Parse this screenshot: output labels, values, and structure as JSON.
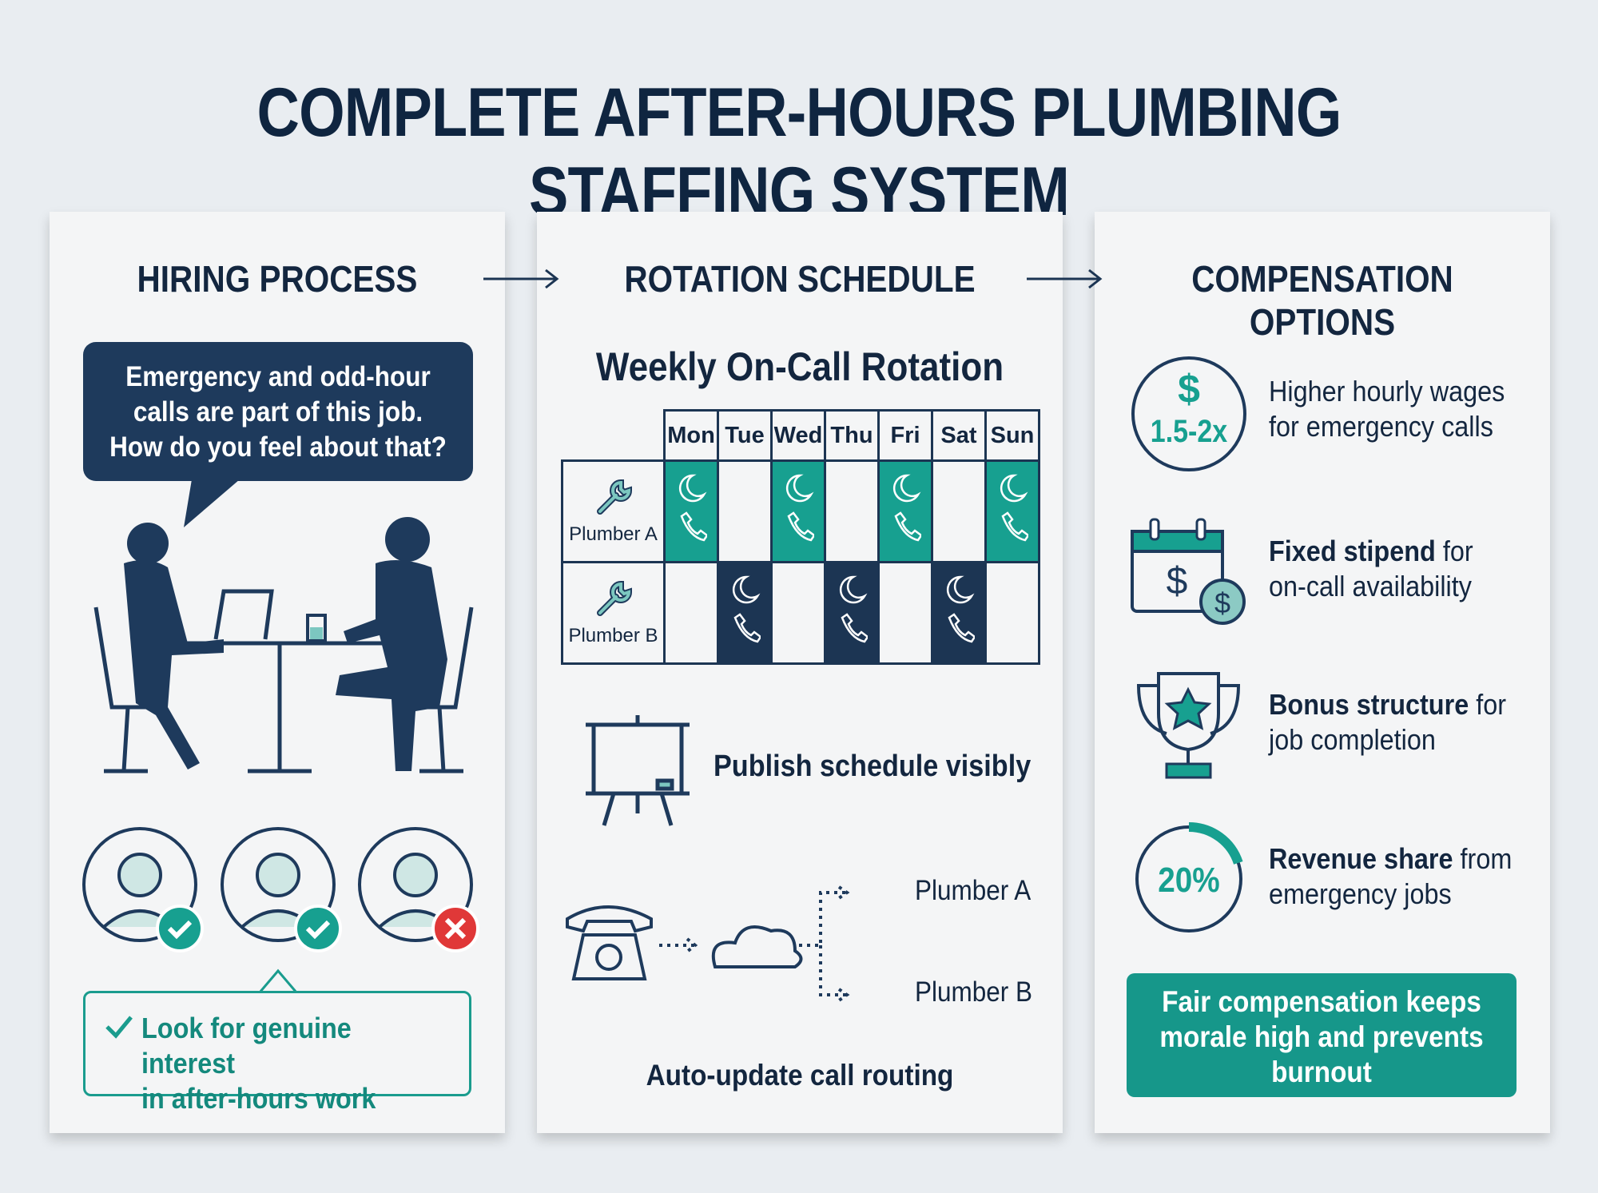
{
  "title": "COMPLETE AFTER-HOURS PLUMBING STAFFING SYSTEM",
  "colors": {
    "navy": "#1e3a5c",
    "teal": "#17a090",
    "red": "#e03838",
    "background": "#e9edf1"
  },
  "hiring": {
    "heading": "HIRING PROCESS",
    "question_lines": [
      "Emergency and odd-hour",
      "calls are part of this job.",
      "How do you feel about that?"
    ],
    "candidates": [
      {
        "status": "accepted",
        "icon": "check-icon"
      },
      {
        "status": "accepted",
        "icon": "check-icon"
      },
      {
        "status": "rejected",
        "icon": "x-icon"
      }
    ],
    "tip_lines": [
      "Look for genuine interest",
      "in after-hours work"
    ]
  },
  "rotation": {
    "heading": "ROTATION SCHEDULE",
    "subtitle": "Weekly On-Call Rotation",
    "days": [
      "Mon",
      "Tue",
      "Wed",
      "Thu",
      "Fri",
      "Sat",
      "Sun"
    ],
    "plumbers": [
      {
        "name": "Plumber A",
        "on_call": [
          true,
          false,
          true,
          false,
          true,
          false,
          true
        ]
      },
      {
        "name": "Plumber B",
        "on_call": [
          false,
          true,
          false,
          true,
          false,
          true,
          false
        ]
      }
    ],
    "publish_label": "Publish schedule visibly",
    "route_targets": [
      "Plumber A",
      "Plumber B"
    ],
    "routing_label": "Auto-update call routing"
  },
  "compensation": {
    "heading": "COMPENSATION OPTIONS",
    "multiplier": "1.5-2x",
    "dollar": "$",
    "items": [
      {
        "bold": "",
        "rest_lines": [
          "Higher hourly wages",
          "for emergency calls"
        ]
      },
      {
        "bold": "Fixed stipend",
        "rest_first": " for",
        "rest_second": "on-call availability"
      },
      {
        "bold": "Bonus structure",
        "rest_first": " for",
        "rest_second": "job completion"
      },
      {
        "bold": "Revenue share",
        "rest_first": " from",
        "rest_second": "emergency jobs"
      }
    ],
    "revenue_percent": "20%",
    "revenue_fraction": 0.2,
    "footer_lines": [
      "Fair compensation keeps",
      "morale high and prevents",
      "burnout"
    ]
  }
}
